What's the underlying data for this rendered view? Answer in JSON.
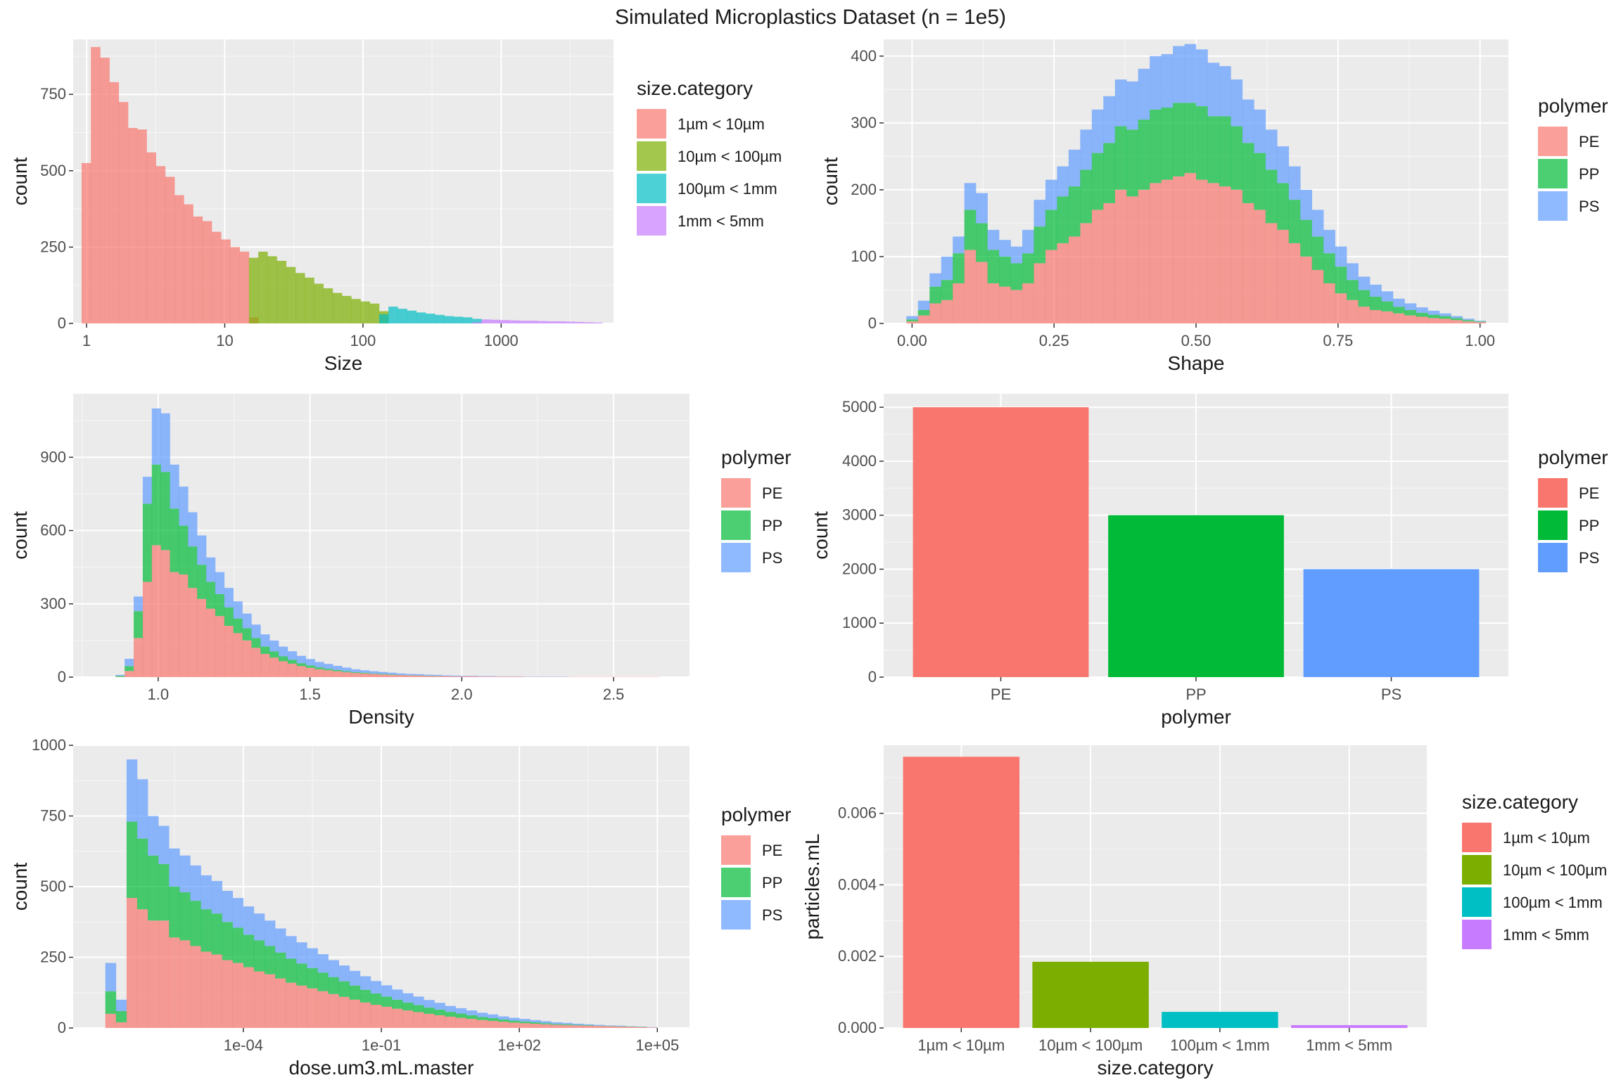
{
  "title": "Simulated Microplastics Dataset (n = 1e5)",
  "colors": {
    "panel_bg": "#EBEBEB",
    "grid_major": "#FFFFFF",
    "size_cat": [
      "#F8766D",
      "#7CAE00",
      "#00BFC4",
      "#C77CFF"
    ],
    "polymer": [
      "#F8766D",
      "#00BA38",
      "#619CFF"
    ]
  },
  "chart_data": [
    {
      "id": "size",
      "type": "bar",
      "subtype": "histogram",
      "alpha": 0.7,
      "xlabel": "Size",
      "ylabel": "count",
      "x_scale": "log10",
      "xlim": [
        0.8,
        6500
      ],
      "x_ticks": [
        1,
        10,
        100,
        1000
      ],
      "x_tick_labels": [
        "1",
        "10",
        "100",
        "1000"
      ],
      "ylim": [
        0,
        930
      ],
      "y_ticks": [
        0,
        250,
        500,
        750
      ],
      "y_tick_labels": [
        "0",
        "250",
        "500",
        "750"
      ],
      "bin_start": 0.92,
      "bin_end": 5400,
      "legend_title": "size.category",
      "legend_labels": [
        "1µm < 10µm",
        "10µm < 100µm",
        "100µm < 1mm",
        "1mm < 5mm"
      ],
      "series": [
        {
          "name": "1µm < 10µm",
          "values": [
            525,
            905,
            870,
            790,
            725,
            640,
            635,
            560,
            515,
            480,
            420,
            390,
            350,
            335,
            300,
            275,
            250,
            235,
            20
          ]
        },
        {
          "name": "10µm < 100µm",
          "values": [
            0,
            0,
            0,
            0,
            0,
            0,
            0,
            0,
            0,
            0,
            0,
            0,
            0,
            0,
            0,
            0,
            0,
            0,
            215,
            235,
            220,
            205,
            185,
            165,
            150,
            130,
            115,
            100,
            90,
            80,
            72,
            65,
            40
          ]
        },
        {
          "name": "100µm < 1mm",
          "values": [
            0,
            0,
            0,
            0,
            0,
            0,
            0,
            0,
            0,
            0,
            0,
            0,
            0,
            0,
            0,
            0,
            0,
            0,
            0,
            0,
            0,
            0,
            0,
            0,
            0,
            0,
            0,
            0,
            0,
            0,
            0,
            0,
            30,
            55,
            48,
            42,
            36,
            32,
            28,
            24,
            22,
            20,
            15
          ]
        },
        {
          "name": "1mm < 5mm",
          "values": [
            0,
            0,
            0,
            0,
            0,
            0,
            0,
            0,
            0,
            0,
            0,
            0,
            0,
            0,
            0,
            0,
            0,
            0,
            0,
            0,
            0,
            0,
            0,
            0,
            0,
            0,
            0,
            0,
            0,
            0,
            0,
            0,
            0,
            0,
            0,
            0,
            0,
            0,
            0,
            0,
            0,
            0,
            4,
            13,
            12,
            11,
            10,
            9,
            9,
            8,
            7,
            7,
            6,
            5,
            4,
            3
          ]
        }
      ]
    },
    {
      "id": "shape",
      "type": "bar",
      "subtype": "stacked-histogram",
      "alpha": 0.7,
      "xlabel": "Shape",
      "ylabel": "count",
      "xlim": [
        -0.05,
        1.05
      ],
      "x_ticks": [
        0,
        0.25,
        0.5,
        0.75,
        1.0
      ],
      "x_tick_labels": [
        "0.00",
        "0.25",
        "0.50",
        "0.75",
        "1.00"
      ],
      "ylim": [
        0,
        425
      ],
      "y_ticks": [
        0,
        100,
        200,
        300,
        400
      ],
      "y_tick_labels": [
        "0",
        "100",
        "200",
        "300",
        "400"
      ],
      "bin_start": -0.01,
      "bin_end": 1.01,
      "legend_title": "polymer",
      "legend_labels": [
        "PE",
        "PP",
        "PS"
      ],
      "series": [
        {
          "name": "PE",
          "values": [
            3,
            12,
            30,
            35,
            60,
            110,
            92,
            60,
            55,
            50,
            60,
            90,
            110,
            120,
            130,
            150,
            170,
            180,
            200,
            190,
            200,
            210,
            215,
            220,
            225,
            215,
            210,
            205,
            200,
            180,
            170,
            150,
            140,
            120,
            100,
            80,
            60,
            45,
            35,
            25,
            20,
            18,
            15,
            12,
            10,
            8,
            7,
            5,
            3,
            2
          ]
        },
        {
          "name": "PP",
          "values": [
            3,
            8,
            25,
            30,
            45,
            60,
            58,
            50,
            45,
            40,
            45,
            55,
            60,
            70,
            75,
            80,
            85,
            90,
            95,
            100,
            105,
            110,
            108,
            110,
            105,
            110,
            100,
            105,
            95,
            90,
            85,
            80,
            70,
            65,
            55,
            50,
            45,
            40,
            30,
            25,
            20,
            15,
            10,
            8,
            6,
            5,
            4,
            3,
            2,
            1
          ]
        },
        {
          "name": "PS",
          "values": [
            5,
            14,
            20,
            35,
            25,
            40,
            45,
            30,
            25,
            25,
            35,
            40,
            45,
            45,
            55,
            60,
            65,
            70,
            70,
            72,
            76,
            80,
            80,
            85,
            88,
            85,
            80,
            75,
            70,
            65,
            65,
            60,
            55,
            50,
            45,
            40,
            35,
            30,
            25,
            20,
            18,
            15,
            12,
            10,
            8,
            6,
            4,
            3,
            2,
            1
          ]
        }
      ]
    },
    {
      "id": "density",
      "type": "bar",
      "subtype": "stacked-histogram",
      "alpha": 0.7,
      "xlabel": "Density",
      "ylabel": "count",
      "xlim": [
        0.72,
        2.75
      ],
      "x_ticks": [
        1.0,
        1.5,
        2.0,
        2.5
      ],
      "x_tick_labels": [
        "1.0",
        "1.5",
        "2.0",
        "2.5"
      ],
      "ylim": [
        0,
        1160
      ],
      "y_ticks": [
        0,
        300,
        600,
        900
      ],
      "y_tick_labels": [
        "0",
        "300",
        "600",
        "900"
      ],
      "bin_start": 0.8,
      "bin_end": 2.65,
      "legend_title": "polymer",
      "legend_labels": [
        "PE",
        "PP",
        "PS"
      ],
      "series": [
        {
          "name": "PE",
          "values": [
            0,
            0,
            1,
            25,
            160,
            390,
            540,
            520,
            430,
            420,
            365,
            320,
            280,
            250,
            210,
            180,
            150,
            120,
            95,
            80,
            65,
            55,
            45,
            38,
            32,
            28,
            24,
            20,
            17,
            15,
            13,
            11,
            9,
            8,
            7,
            6,
            5,
            4,
            4,
            3,
            3,
            3,
            2,
            2,
            2,
            2,
            2,
            1,
            1,
            1,
            1,
            1,
            1,
            1,
            1,
            1,
            1,
            1,
            1,
            1,
            1,
            1
          ]
        },
        {
          "name": "PP",
          "values": [
            0,
            0,
            4,
            20,
            110,
            320,
            330,
            320,
            260,
            200,
            170,
            140,
            110,
            90,
            75,
            60,
            50,
            40,
            30,
            25,
            20,
            16,
            12,
            10,
            8,
            6,
            5,
            4,
            3,
            3,
            2,
            2,
            2,
            1,
            1,
            1,
            1,
            1,
            0,
            0,
            0,
            0,
            0,
            0,
            0,
            0,
            0,
            0,
            0,
            0,
            0,
            0,
            0,
            0,
            0,
            0,
            0,
            0,
            0,
            0,
            0,
            0
          ]
        },
        {
          "name": "PS",
          "values": [
            0,
            0,
            4,
            30,
            60,
            110,
            230,
            240,
            180,
            160,
            140,
            120,
            100,
            90,
            80,
            70,
            60,
            55,
            50,
            45,
            40,
            35,
            30,
            26,
            22,
            20,
            17,
            15,
            12,
            10,
            9,
            8,
            7,
            6,
            5,
            5,
            4,
            4,
            3,
            3,
            2,
            2,
            2,
            2,
            1,
            1,
            1,
            1,
            1,
            1,
            1,
            1,
            0,
            0,
            0,
            0,
            0,
            0,
            0,
            0,
            0,
            0
          ]
        }
      ]
    },
    {
      "id": "polymer",
      "type": "bar",
      "xlabel": "polymer",
      "ylabel": "count",
      "categories": [
        "PE",
        "PP",
        "PS"
      ],
      "values": [
        5000,
        3000,
        2000
      ],
      "ylim": [
        0,
        5250
      ],
      "y_ticks": [
        0,
        1000,
        2000,
        3000,
        4000,
        5000
      ],
      "y_tick_labels": [
        "0",
        "1000",
        "2000",
        "3000",
        "4000",
        "5000"
      ],
      "legend_title": "polymer",
      "legend_labels": [
        "PE",
        "PP",
        "PS"
      ]
    },
    {
      "id": "dose",
      "type": "bar",
      "subtype": "stacked-histogram",
      "alpha": 0.7,
      "xlabel": "dose.um3.mL.master",
      "ylabel": "count",
      "x_scale": "log10",
      "xlim": [
        2e-08,
        500000
      ],
      "x_ticks": [
        0.0001,
        0.1,
        100,
        100000
      ],
      "x_tick_labels": [
        "1e-04",
        "1e-01",
        "1e+02",
        "1e+05"
      ],
      "ylim": [
        0,
        1000
      ],
      "y_ticks": [
        0,
        250,
        500,
        750,
        1000
      ],
      "y_tick_labels": [
        "0",
        "250",
        "500",
        "750",
        "1000"
      ],
      "bin_start": 1e-07,
      "bin_end": 100000,
      "legend_title": "polymer",
      "legend_labels": [
        "PE",
        "PP",
        "PS"
      ],
      "series": [
        {
          "name": "PE",
          "values": [
            50,
            20,
            460,
            420,
            380,
            380,
            320,
            310,
            290,
            270,
            260,
            240,
            230,
            215,
            200,
            190,
            175,
            160,
            150,
            140,
            130,
            120,
            110,
            100,
            90,
            82,
            75,
            68,
            62,
            56,
            50,
            45,
            40,
            36,
            32,
            28,
            25,
            22,
            19,
            17,
            15,
            13,
            11,
            10,
            9,
            8,
            7,
            6,
            5,
            4,
            3,
            2
          ]
        },
        {
          "name": "PP",
          "values": [
            80,
            40,
            270,
            250,
            230,
            200,
            180,
            170,
            160,
            150,
            145,
            135,
            125,
            115,
            110,
            100,
            92,
            85,
            78,
            72,
            66,
            60,
            55,
            50,
            45,
            40,
            36,
            32,
            28,
            25,
            22,
            20,
            17,
            15,
            13,
            11,
            10,
            8,
            7,
            6,
            5,
            4,
            3,
            3,
            2,
            2,
            1,
            1,
            1,
            1,
            1,
            0
          ]
        },
        {
          "name": "PS",
          "values": [
            100,
            40,
            220,
            210,
            140,
            135,
            135,
            130,
            125,
            120,
            115,
            110,
            105,
            100,
            95,
            90,
            85,
            80,
            75,
            70,
            65,
            60,
            56,
            52,
            48,
            44,
            40,
            36,
            33,
            30,
            27,
            24,
            21,
            19,
            17,
            15,
            13,
            11,
            10,
            9,
            8,
            7,
            6,
            5,
            4,
            3,
            3,
            2,
            2,
            1,
            1,
            1
          ]
        }
      ]
    },
    {
      "id": "particles",
      "type": "bar",
      "xlabel": "size.category",
      "ylabel": "particles.mL",
      "categories": [
        "1µm < 10µm",
        "10µm < 100µm",
        "100µm < 1mm",
        "1mm < 5mm"
      ],
      "values": [
        0.00758,
        0.00185,
        0.00045,
        8e-05
      ],
      "ylim": [
        0,
        0.0079
      ],
      "y_ticks": [
        0,
        0.002,
        0.004,
        0.006
      ],
      "y_tick_labels": [
        "0.000",
        "0.002",
        "0.004",
        "0.006"
      ],
      "legend_title": "size.category",
      "legend_labels": [
        "1µm < 10µm",
        "10µm < 100µm",
        "100µm < 1mm",
        "1mm < 5mm"
      ]
    }
  ]
}
